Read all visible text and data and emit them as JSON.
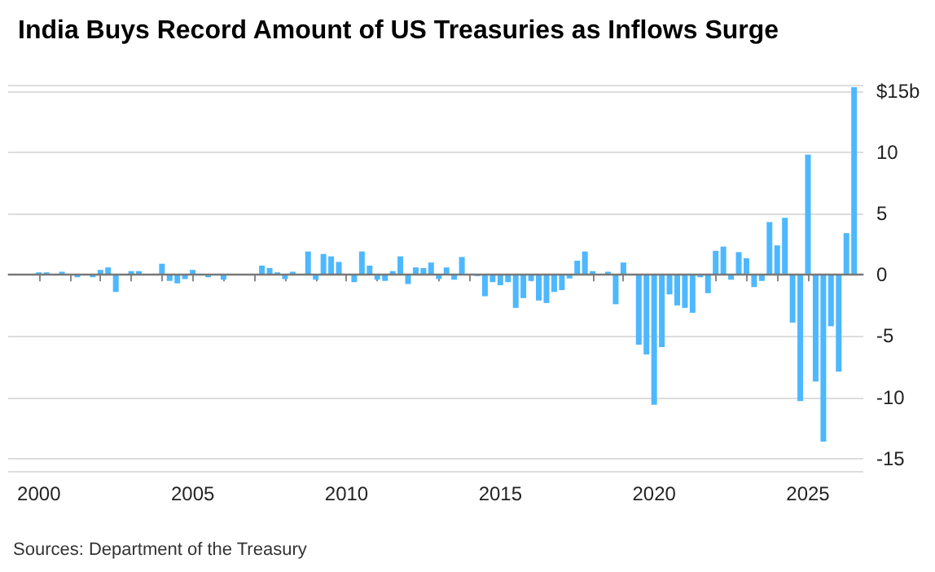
{
  "chart_data": {
    "type": "bar",
    "title": "India Buys Record Amount of US Treasuries as Inflows Surge",
    "annotations": [
      "Sources: Department of the Treasury"
    ],
    "x": [
      2000,
      2000.25,
      2000.5,
      2000.75,
      2001,
      2001.25,
      2001.5,
      2001.75,
      2002,
      2002.25,
      2002.5,
      2002.75,
      2003,
      2003.25,
      2003.5,
      2003.75,
      2004,
      2004.25,
      2004.5,
      2004.75,
      2005,
      2005.25,
      2005.5,
      2005.75,
      2006,
      2006.25,
      2006.5,
      2006.75,
      2007,
      2007.25,
      2007.5,
      2007.75,
      2008,
      2008.25,
      2008.5,
      2008.75,
      2009,
      2009.25,
      2009.5,
      2009.75,
      2010,
      2010.25,
      2010.5,
      2010.75,
      2011,
      2011.25,
      2011.5,
      2011.75,
      2012,
      2012.25,
      2012.5,
      2012.75,
      2013,
      2013.25,
      2013.5,
      2013.75,
      2014,
      2014.25,
      2014.5,
      2014.75,
      2015,
      2015.25,
      2015.5,
      2015.75,
      2016,
      2016.25,
      2016.5,
      2016.75,
      2017,
      2017.25,
      2017.5,
      2017.75,
      2018,
      2018.25,
      2018.5,
      2018.75,
      2019,
      2019.25,
      2019.5,
      2019.75,
      2020,
      2020.25,
      2020.5,
      2020.75,
      2021,
      2021.25,
      2021.5,
      2021.75,
      2022,
      2022.25,
      2022.5,
      2022.75,
      2023,
      2023.25,
      2023.5,
      2023.75,
      2024,
      2024.25,
      2024.5,
      2024.75,
      2025,
      2025.25,
      2025.5,
      2025.75,
      2026,
      2026.25,
      2026.5
    ],
    "values": [
      0.2,
      0.2,
      0,
      0.25,
      0,
      -0.2,
      0,
      -0.2,
      0.4,
      0.6,
      -1.4,
      0,
      0.3,
      0.3,
      0,
      0,
      0.9,
      -0.5,
      -0.7,
      -0.35,
      0.4,
      0,
      -0.2,
      0,
      -0.4,
      0,
      0,
      null,
      0,
      0.75,
      0.55,
      0.2,
      -0.35,
      0.25,
      0,
      1.9,
      -0.4,
      1.7,
      1.5,
      1.05,
      null,
      -0.6,
      1.9,
      0.75,
      -0.4,
      -0.5,
      0.3,
      1.5,
      -0.75,
      0.6,
      0.55,
      1,
      -0.35,
      0.6,
      -0.4,
      1.45,
      0,
      -0.1,
      -1.75,
      -0.6,
      -0.85,
      -0.6,
      -2.7,
      -1.9,
      -0.5,
      -2.1,
      -2.3,
      -1.4,
      -1.25,
      -0.3,
      1.15,
      1.9,
      0.3,
      null,
      0.25,
      -2.4,
      1,
      0,
      -5.7,
      -6.5,
      -10.6,
      -5.9,
      -1.6,
      -2.5,
      -2.7,
      -3.1,
      -0.2,
      -1.5,
      1.95,
      2.3,
      -0.4,
      1.85,
      1.35,
      -1,
      -0.5,
      4.3,
      2.4,
      4.65,
      -3.9,
      -10.3,
      9.8,
      -8.7,
      -13.6,
      -4.2,
      -7.9,
      3.4,
      15.3
    ],
    "color": "#4db8ff",
    "xlim": [
      1999,
      2026.8
    ],
    "xticks": [
      2000,
      {
        "value": 2001,
        "label": null
      },
      {
        "value": 2002,
        "label": null
      },
      {
        "value": 2003,
        "label": null
      },
      {
        "value": 2004,
        "label": null
      },
      2005,
      {
        "value": 2006,
        "label": null
      },
      {
        "value": 2007,
        "label": null
      },
      {
        "value": 2008,
        "label": null
      },
      {
        "value": 2009,
        "label": null
      },
      2010,
      {
        "value": 2011,
        "label": null
      },
      {
        "value": 2012,
        "label": null
      },
      {
        "value": 2013,
        "label": null
      },
      {
        "value": 2014,
        "label": null
      },
      2015,
      {
        "value": 2016,
        "label": null
      },
      {
        "value": 2017,
        "label": null
      },
      {
        "value": 2018,
        "label": null
      },
      {
        "value": 2019,
        "label": null
      },
      2020,
      {
        "value": 2021,
        "label": null
      },
      {
        "value": 2022,
        "label": null
      },
      {
        "value": 2023,
        "label": null
      },
      {
        "value": 2024,
        "label": null
      },
      2025,
      {
        "value": 2026,
        "label": null
      }
    ],
    "ylim": [
      -16,
      15.5
    ],
    "yticks": [
      -15,
      -10,
      -5,
      0,
      5,
      10,
      {
        "value": 15,
        "label": "$15b"
      }
    ],
    "grid": "y"
  }
}
